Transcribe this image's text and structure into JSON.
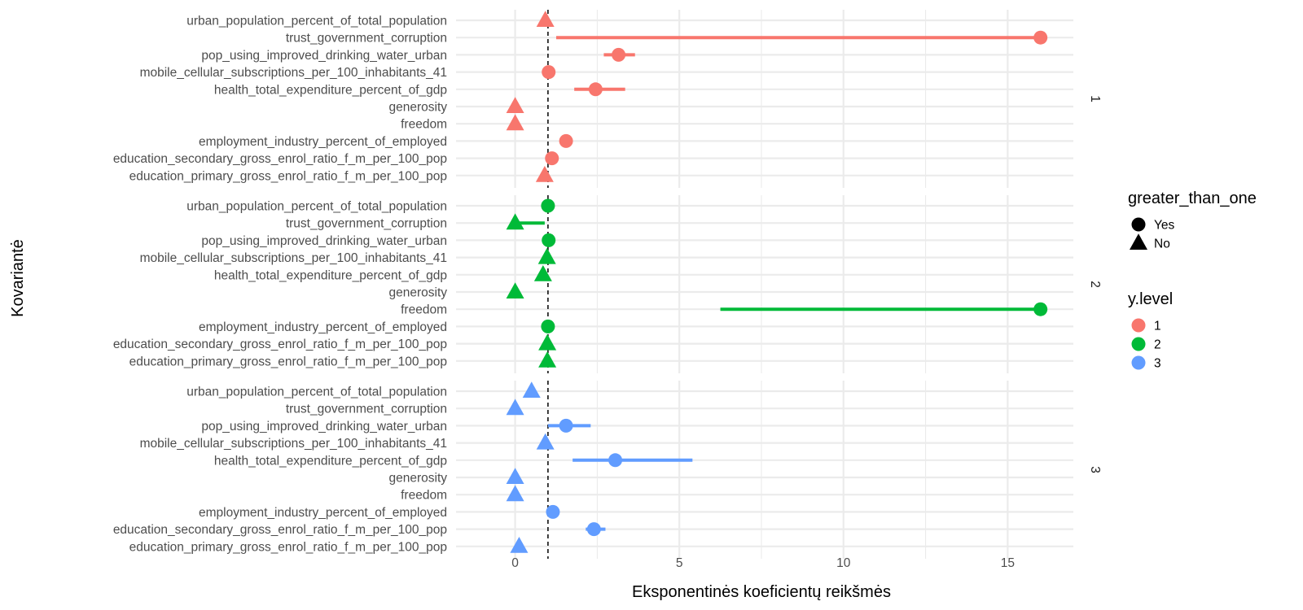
{
  "chart_data": {
    "type": "scatter",
    "xlabel": "Eksponentinės koeficientų reikšmės",
    "ylabel": "Kovariantė",
    "xlim": [
      -1.8,
      17
    ],
    "x_ticks": [
      0,
      5,
      10,
      15
    ],
    "x_tick_labels": [
      "0",
      "5",
      "10",
      "15"
    ],
    "reference_line": {
      "x": 1,
      "style": "dashed"
    },
    "grid": true,
    "categories": [
      "urban_population_percent_of_total_population",
      "trust_government_corruption",
      "pop_using_improved_drinking_water_urban",
      "mobile_cellular_subscriptions_per_100_inhabitants_41",
      "health_total_expenditure_percent_of_gdp",
      "generosity",
      "freedom",
      "employment_industry_percent_of_employed",
      "education_secondary_gross_enrol_ratio_f_m_per_100_pop",
      "education_primary_gross_enrol_ratio_f_m_per_100_pop"
    ],
    "legend": {
      "placement": "right",
      "shape": {
        "title": "greater_than_one",
        "entries": [
          {
            "label": "Yes",
            "shape": "circle"
          },
          {
            "label": "No",
            "shape": "triangle"
          }
        ]
      },
      "color": {
        "title": "y.level",
        "entries": [
          {
            "label": "1",
            "color": "#F8766D"
          },
          {
            "label": "2",
            "color": "#00BA38"
          },
          {
            "label": "3",
            "color": "#619CFF"
          }
        ]
      }
    },
    "facets": [
      {
        "label": "1",
        "color": "#F8766D",
        "points": [
          {
            "value": 0.92,
            "low": 0.92,
            "high": 0.92,
            "greater_than_one": "No"
          },
          {
            "value": 16.0,
            "low": 1.25,
            "high": 16.0,
            "greater_than_one": "Yes"
          },
          {
            "value": 3.15,
            "low": 2.7,
            "high": 3.65,
            "greater_than_one": "Yes"
          },
          {
            "value": 1.02,
            "low": 1.0,
            "high": 1.05,
            "greater_than_one": "Yes"
          },
          {
            "value": 2.45,
            "low": 1.8,
            "high": 3.35,
            "greater_than_one": "Yes"
          },
          {
            "value": 0.0,
            "low": 0.0,
            "high": 0.0,
            "greater_than_one": "No"
          },
          {
            "value": 0.0,
            "low": 0.0,
            "high": 0.0,
            "greater_than_one": "No"
          },
          {
            "value": 1.55,
            "low": 1.5,
            "high": 1.6,
            "greater_than_one": "Yes"
          },
          {
            "value": 1.12,
            "low": 1.05,
            "high": 1.2,
            "greater_than_one": "Yes"
          },
          {
            "value": 0.9,
            "low": 0.85,
            "high": 0.95,
            "greater_than_one": "No"
          }
        ]
      },
      {
        "label": "2",
        "color": "#00BA38",
        "points": [
          {
            "value": 1.0,
            "low": 0.97,
            "high": 1.03,
            "greater_than_one": "Yes"
          },
          {
            "value": 0.0,
            "low": 0.0,
            "high": 0.9,
            "greater_than_one": "No"
          },
          {
            "value": 1.02,
            "low": 0.98,
            "high": 1.05,
            "greater_than_one": "Yes"
          },
          {
            "value": 0.97,
            "low": 0.95,
            "high": 0.99,
            "greater_than_one": "No"
          },
          {
            "value": 0.85,
            "low": 0.8,
            "high": 0.9,
            "greater_than_one": "No"
          },
          {
            "value": 0.0,
            "low": 0.0,
            "high": 0.0,
            "greater_than_one": "No"
          },
          {
            "value": 16.0,
            "low": 6.25,
            "high": 16.0,
            "greater_than_one": "Yes"
          },
          {
            "value": 1.0,
            "low": 0.97,
            "high": 1.03,
            "greater_than_one": "Yes"
          },
          {
            "value": 0.98,
            "low": 0.96,
            "high": 1.0,
            "greater_than_one": "No"
          },
          {
            "value": 0.98,
            "low": 0.96,
            "high": 1.0,
            "greater_than_one": "No"
          }
        ]
      },
      {
        "label": "3",
        "color": "#619CFF",
        "points": [
          {
            "value": 0.5,
            "low": 0.45,
            "high": 0.55,
            "greater_than_one": "No"
          },
          {
            "value": 0.0,
            "low": 0.0,
            "high": 0.0,
            "greater_than_one": "No"
          },
          {
            "value": 1.55,
            "low": 1.0,
            "high": 2.3,
            "greater_than_one": "Yes"
          },
          {
            "value": 0.92,
            "low": 0.88,
            "high": 0.96,
            "greater_than_one": "No"
          },
          {
            "value": 3.05,
            "low": 1.75,
            "high": 5.4,
            "greater_than_one": "Yes"
          },
          {
            "value": 0.0,
            "low": 0.0,
            "high": 0.0,
            "greater_than_one": "No"
          },
          {
            "value": 0.0,
            "low": 0.0,
            "high": 0.0,
            "greater_than_one": "No"
          },
          {
            "value": 1.15,
            "low": 1.0,
            "high": 1.35,
            "greater_than_one": "Yes"
          },
          {
            "value": 2.4,
            "low": 2.15,
            "high": 2.75,
            "greater_than_one": "Yes"
          },
          {
            "value": 0.12,
            "low": 0.1,
            "high": 0.14,
            "greater_than_one": "No"
          }
        ]
      }
    ]
  }
}
